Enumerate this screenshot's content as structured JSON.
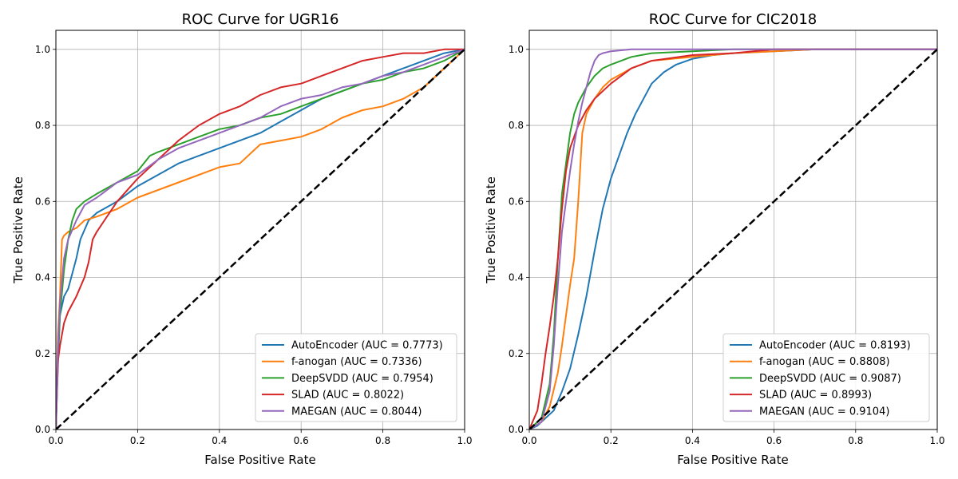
{
  "chart_data": [
    {
      "type": "line",
      "title": "ROC Curve for UGR16",
      "xlabel": "False Positive Rate",
      "ylabel": "True Positive Rate",
      "xlim": [
        0,
        1
      ],
      "ylim": [
        0,
        1.05
      ],
      "xticks": [
        "0.0",
        "0.2",
        "0.4",
        "0.6",
        "0.8",
        "1.0"
      ],
      "yticks": [
        "0.0",
        "0.2",
        "0.4",
        "0.6",
        "0.8",
        "1.0"
      ],
      "grid": true,
      "legend_position": "lower-right",
      "reference_line": {
        "style": "dashed",
        "color": "#000000",
        "x": [
          0,
          1
        ],
        "y": [
          0,
          1
        ]
      },
      "series": [
        {
          "name": "AutoEncoder (AUC = 0.7773)",
          "color": "#1f77b4",
          "x": [
            0,
            0.005,
            0.01,
            0.02,
            0.03,
            0.04,
            0.05,
            0.06,
            0.08,
            0.1,
            0.15,
            0.2,
            0.25,
            0.3,
            0.35,
            0.4,
            0.45,
            0.5,
            0.55,
            0.6,
            0.65,
            0.7,
            0.75,
            0.8,
            0.85,
            0.9,
            0.95,
            1.0
          ],
          "y": [
            0,
            0.17,
            0.3,
            0.35,
            0.37,
            0.41,
            0.45,
            0.5,
            0.55,
            0.57,
            0.6,
            0.64,
            0.67,
            0.7,
            0.72,
            0.74,
            0.76,
            0.78,
            0.81,
            0.84,
            0.87,
            0.89,
            0.91,
            0.93,
            0.95,
            0.97,
            0.99,
            1.0
          ]
        },
        {
          "name": "f-anogan (AUC = 0.7336)",
          "color": "#ff7f0e",
          "x": [
            0,
            0.005,
            0.01,
            0.015,
            0.02,
            0.03,
            0.05,
            0.07,
            0.1,
            0.15,
            0.2,
            0.25,
            0.3,
            0.35,
            0.4,
            0.45,
            0.5,
            0.55,
            0.6,
            0.65,
            0.7,
            0.75,
            0.8,
            0.85,
            0.9,
            0.95,
            1.0
          ],
          "y": [
            0,
            0.25,
            0.35,
            0.5,
            0.51,
            0.52,
            0.53,
            0.55,
            0.56,
            0.58,
            0.61,
            0.63,
            0.65,
            0.67,
            0.69,
            0.7,
            0.75,
            0.76,
            0.77,
            0.79,
            0.82,
            0.84,
            0.85,
            0.87,
            0.9,
            0.95,
            1.0
          ]
        },
        {
          "name": "DeepSVDD (AUC = 0.7954)",
          "color": "#2ca02c",
          "x": [
            0,
            0.005,
            0.01,
            0.02,
            0.03,
            0.04,
            0.05,
            0.07,
            0.1,
            0.15,
            0.2,
            0.23,
            0.25,
            0.3,
            0.35,
            0.4,
            0.45,
            0.5,
            0.55,
            0.6,
            0.65,
            0.7,
            0.75,
            0.8,
            0.85,
            0.9,
            0.95,
            1.0
          ],
          "y": [
            0,
            0.2,
            0.3,
            0.42,
            0.5,
            0.55,
            0.58,
            0.6,
            0.62,
            0.65,
            0.68,
            0.72,
            0.73,
            0.75,
            0.77,
            0.79,
            0.8,
            0.82,
            0.83,
            0.85,
            0.87,
            0.89,
            0.91,
            0.92,
            0.94,
            0.95,
            0.97,
            1.0
          ]
        },
        {
          "name": "SLAD (AUC = 0.8022)",
          "color": "#d62728",
          "x": [
            0,
            0.005,
            0.01,
            0.02,
            0.03,
            0.04,
            0.05,
            0.07,
            0.08,
            0.09,
            0.1,
            0.15,
            0.2,
            0.25,
            0.3,
            0.35,
            0.4,
            0.45,
            0.5,
            0.55,
            0.6,
            0.65,
            0.7,
            0.75,
            0.8,
            0.85,
            0.9,
            0.95,
            1.0
          ],
          "y": [
            0,
            0.18,
            0.22,
            0.28,
            0.31,
            0.33,
            0.35,
            0.4,
            0.44,
            0.5,
            0.52,
            0.6,
            0.66,
            0.71,
            0.76,
            0.8,
            0.83,
            0.85,
            0.88,
            0.9,
            0.91,
            0.93,
            0.95,
            0.97,
            0.98,
            0.99,
            0.99,
            1.0,
            1.0
          ]
        },
        {
          "name": "MAEGAN (AUC = 0.8044)",
          "color": "#9467bd",
          "x": [
            0,
            0.005,
            0.01,
            0.02,
            0.03,
            0.05,
            0.07,
            0.1,
            0.15,
            0.2,
            0.25,
            0.3,
            0.35,
            0.4,
            0.45,
            0.5,
            0.55,
            0.6,
            0.65,
            0.7,
            0.75,
            0.8,
            0.85,
            0.9,
            0.95,
            1.0
          ],
          "y": [
            0,
            0.22,
            0.33,
            0.45,
            0.5,
            0.55,
            0.59,
            0.61,
            0.65,
            0.67,
            0.71,
            0.74,
            0.76,
            0.78,
            0.8,
            0.82,
            0.85,
            0.87,
            0.88,
            0.9,
            0.91,
            0.93,
            0.94,
            0.96,
            0.98,
            1.0
          ]
        }
      ]
    },
    {
      "type": "line",
      "title": "ROC Curve for CIC2018",
      "xlabel": "False Positive Rate",
      "ylabel": "True Positive Rate",
      "xlim": [
        0,
        1
      ],
      "ylim": [
        0,
        1.05
      ],
      "xticks": [
        "0.0",
        "0.2",
        "0.4",
        "0.6",
        "0.8",
        "1.0"
      ],
      "yticks": [
        "0.0",
        "0.2",
        "0.4",
        "0.6",
        "0.8",
        "1.0"
      ],
      "grid": true,
      "legend_position": "lower-right",
      "reference_line": {
        "style": "dashed",
        "color": "#000000",
        "x": [
          0,
          1
        ],
        "y": [
          0,
          1
        ]
      },
      "series": [
        {
          "name": "AutoEncoder (AUC = 0.8193)",
          "color": "#1f77b4",
          "x": [
            0,
            0.02,
            0.04,
            0.06,
            0.08,
            0.1,
            0.12,
            0.14,
            0.16,
            0.18,
            0.2,
            0.22,
            0.24,
            0.26,
            0.28,
            0.3,
            0.33,
            0.36,
            0.4,
            0.45,
            0.5,
            0.6,
            0.7,
            0.8,
            0.9,
            1.0
          ],
          "y": [
            0,
            0.01,
            0.03,
            0.05,
            0.1,
            0.16,
            0.25,
            0.35,
            0.47,
            0.58,
            0.66,
            0.72,
            0.78,
            0.83,
            0.87,
            0.91,
            0.94,
            0.96,
            0.975,
            0.985,
            0.99,
            0.995,
            1.0,
            1.0,
            1.0,
            1.0
          ]
        },
        {
          "name": "f-anogan (AUC = 0.8808)",
          "color": "#ff7f0e",
          "x": [
            0,
            0.03,
            0.05,
            0.07,
            0.08,
            0.09,
            0.1,
            0.11,
            0.12,
            0.13,
            0.14,
            0.16,
            0.18,
            0.2,
            0.25,
            0.3,
            0.4,
            0.5,
            0.6,
            0.7,
            0.8,
            0.9,
            1.0
          ],
          "y": [
            0,
            0.02,
            0.06,
            0.15,
            0.22,
            0.3,
            0.38,
            0.45,
            0.6,
            0.78,
            0.83,
            0.87,
            0.9,
            0.92,
            0.95,
            0.97,
            0.98,
            0.99,
            0.995,
            1.0,
            1.0,
            1.0,
            1.0
          ]
        },
        {
          "name": "DeepSVDD (AUC = 0.9087)",
          "color": "#2ca02c",
          "x": [
            0,
            0.03,
            0.05,
            0.06,
            0.07,
            0.08,
            0.09,
            0.1,
            0.11,
            0.12,
            0.14,
            0.16,
            0.18,
            0.2,
            0.25,
            0.3,
            0.4,
            0.5,
            0.6,
            0.8,
            1.0
          ],
          "y": [
            0,
            0.03,
            0.12,
            0.25,
            0.45,
            0.62,
            0.7,
            0.78,
            0.83,
            0.86,
            0.9,
            0.93,
            0.95,
            0.96,
            0.98,
            0.99,
            0.995,
            1.0,
            1.0,
            1.0,
            1.0
          ]
        },
        {
          "name": "SLAD (AUC = 0.8993)",
          "color": "#d62728",
          "x": [
            0,
            0.02,
            0.03,
            0.04,
            0.05,
            0.06,
            0.07,
            0.08,
            0.09,
            0.1,
            0.12,
            0.14,
            0.16,
            0.18,
            0.2,
            0.25,
            0.3,
            0.4,
            0.5,
            0.6,
            0.8,
            1.0
          ],
          "y": [
            0,
            0.05,
            0.12,
            0.2,
            0.27,
            0.35,
            0.45,
            0.58,
            0.68,
            0.74,
            0.8,
            0.84,
            0.87,
            0.89,
            0.91,
            0.95,
            0.97,
            0.985,
            0.99,
            1.0,
            1.0,
            1.0
          ]
        },
        {
          "name": "MAEGAN (AUC = 0.9104)",
          "color": "#9467bd",
          "x": [
            0,
            0.03,
            0.05,
            0.06,
            0.07,
            0.08,
            0.09,
            0.1,
            0.11,
            0.12,
            0.13,
            0.14,
            0.15,
            0.16,
            0.17,
            0.18,
            0.2,
            0.25,
            0.3,
            0.4,
            0.5,
            0.6,
            0.8,
            1.0
          ],
          "y": [
            0,
            0.02,
            0.1,
            0.22,
            0.38,
            0.52,
            0.6,
            0.68,
            0.75,
            0.81,
            0.86,
            0.9,
            0.94,
            0.97,
            0.985,
            0.99,
            0.995,
            1.0,
            1.0,
            1.0,
            1.0,
            1.0,
            1.0,
            1.0
          ]
        }
      ]
    }
  ]
}
